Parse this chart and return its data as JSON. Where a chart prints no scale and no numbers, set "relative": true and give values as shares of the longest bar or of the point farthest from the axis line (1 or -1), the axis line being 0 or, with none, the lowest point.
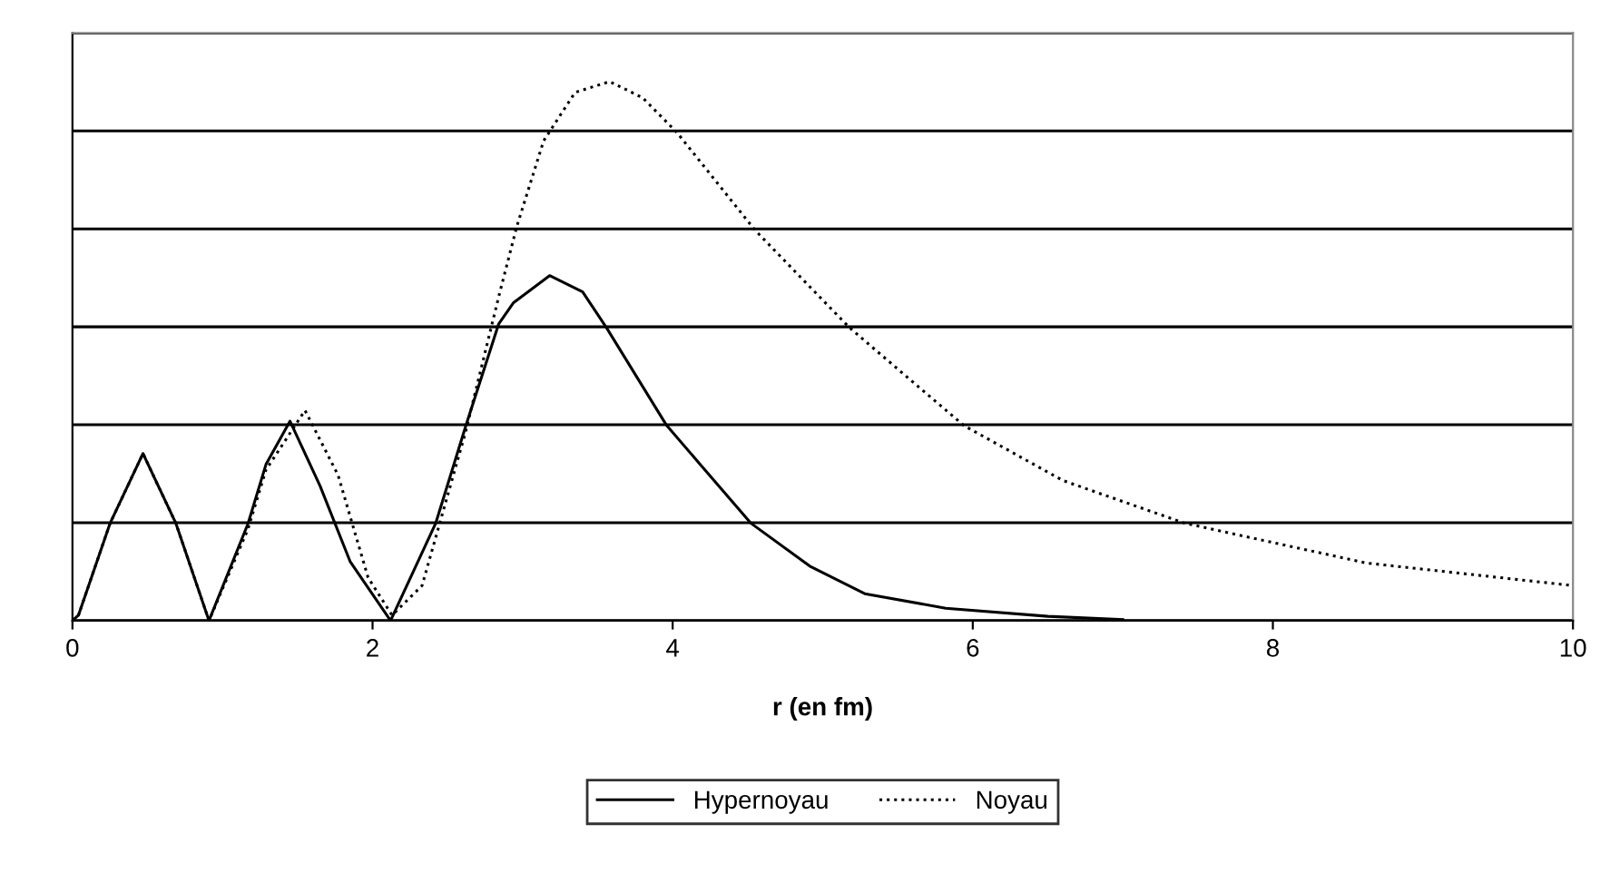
{
  "chart_data": {
    "type": "line",
    "relative": true,
    "xlabel": "r (en fm)",
    "xlim": [
      0,
      10
    ],
    "xticks": [
      0,
      2,
      4,
      6,
      8,
      10
    ],
    "grid": "y",
    "legend": "bottom",
    "marker": "none",
    "series": [
      {
        "name": "Hypernoyau",
        "color": "#000000",
        "line_style": "solid",
        "x": [
          0,
          0.04,
          0.25,
          0.47,
          0.69,
          0.91,
          1.17,
          1.29,
          1.45,
          1.65,
          1.85,
          2.12,
          2.42,
          2.62,
          2.84,
          2.94,
          3.18,
          3.4,
          3.56,
          3.96,
          4.52,
          4.92,
          5.28,
          5.82,
          6.5,
          7.0
        ],
        "values": [
          0,
          0.01,
          0.18,
          0.31,
          0.18,
          0,
          0.18,
          0.29,
          0.37,
          0.25,
          0.11,
          0,
          0.18,
          0.36,
          0.55,
          0.59,
          0.64,
          0.61,
          0.543,
          0.362,
          0.181,
          0.1,
          0.05,
          0.023,
          0.008,
          0.002
        ]
      },
      {
        "name": "Noyau",
        "color": "#000000",
        "line_style": "dotted",
        "x": [
          0,
          0.04,
          0.25,
          0.47,
          0.69,
          0.91,
          1.17,
          1.29,
          1.55,
          1.77,
          1.97,
          2.13,
          2.33,
          2.62,
          2.84,
          2.96,
          3.14,
          3.35,
          3.58,
          3.8,
          4.03,
          4.55,
          5.18,
          5.94,
          6.6,
          7.41,
          8.62,
          10
        ],
        "values": [
          0,
          0.01,
          0.18,
          0.31,
          0.18,
          0,
          0.17,
          0.28,
          0.39,
          0.27,
          0.08,
          0.01,
          0.065,
          0.35,
          0.6,
          0.73,
          0.89,
          0.98,
          1.0,
          0.97,
          0.905,
          0.724,
          0.543,
          0.362,
          0.26,
          0.181,
          0.107,
          0.065
        ]
      }
    ]
  }
}
